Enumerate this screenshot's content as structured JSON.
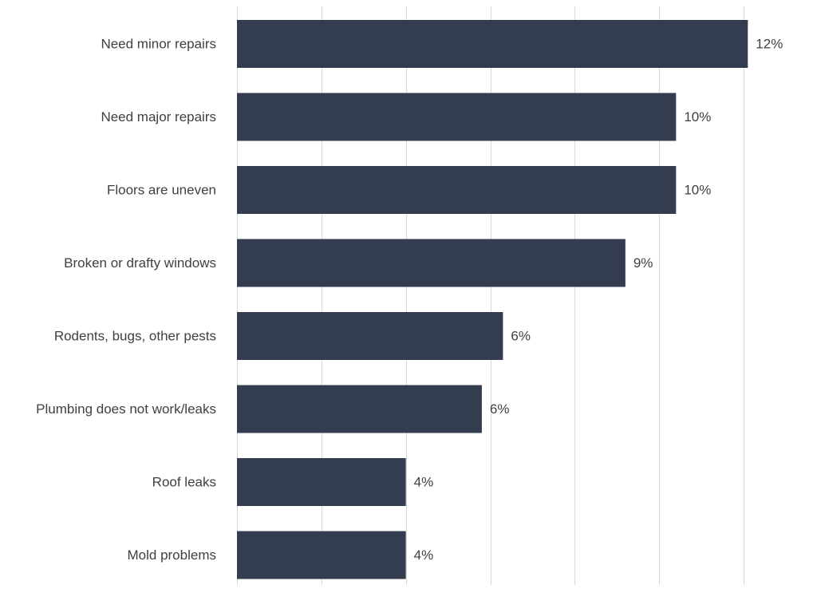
{
  "chart_data": {
    "type": "bar",
    "orientation": "horizontal",
    "categories": [
      "Need minor repairs",
      "Need major repairs",
      "Floors are uneven",
      "Broken or drafty windows",
      "Rodents, bugs, other pests",
      "Plumbing does not work/leaks",
      "Roof leaks",
      "Mold problems"
    ],
    "values": [
      12.1,
      10.4,
      10.4,
      9.2,
      6.3,
      5.8,
      4.0,
      4.0
    ],
    "value_labels": [
      "12%",
      "10%",
      "10%",
      "9%",
      "6%",
      "6%",
      "4%",
      "4%"
    ],
    "title": "",
    "xlabel": "",
    "ylabel": "",
    "xlim": [
      0,
      12
    ],
    "x_gridline_step": 2,
    "grid": true,
    "x_tick_labels_visible": false,
    "bar_color": "#333d4f",
    "gridline_color": "#d9d9d9",
    "label_color": "#404040"
  }
}
